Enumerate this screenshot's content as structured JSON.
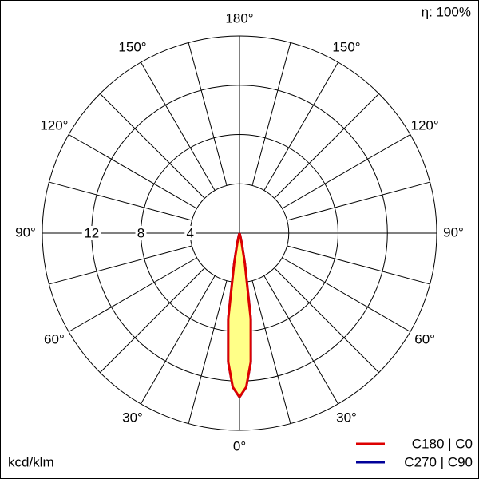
{
  "chart_data": {
    "type": "polar",
    "efficiency": "η: 100%",
    "unit": "kcd/klm",
    "rlim": [
      0,
      16
    ],
    "rticks": [
      4,
      8,
      12
    ],
    "angleticks": [
      {
        "value": 0,
        "label": "0°"
      },
      {
        "value": 30,
        "label": "30°"
      },
      {
        "value": 60,
        "label": "60°"
      },
      {
        "value": 90,
        "label": "90°"
      },
      {
        "value": 120,
        "label": "120°"
      },
      {
        "value": 150,
        "label": "150°"
      },
      {
        "value": 180,
        "label": "180°"
      }
    ],
    "angles": [
      0,
      2.5,
      5,
      7.5,
      10,
      12.5,
      15,
      20,
      30,
      60,
      90,
      120,
      150,
      180
    ],
    "fill": "#ffff88",
    "series": [
      {
        "name": "C180 | C0",
        "color": "#dd0000",
        "values": [
          13.3,
          12.5,
          10.5,
          7,
          2.5,
          0.8,
          0.2,
          0,
          0,
          0,
          0,
          0,
          0,
          0
        ]
      },
      {
        "name": "C270 | C90",
        "color": "#000099",
        "values": [
          13.3,
          12.5,
          10.5,
          7,
          2.5,
          0.8,
          0.2,
          0,
          0,
          0,
          0,
          0,
          0,
          0
        ]
      }
    ]
  }
}
